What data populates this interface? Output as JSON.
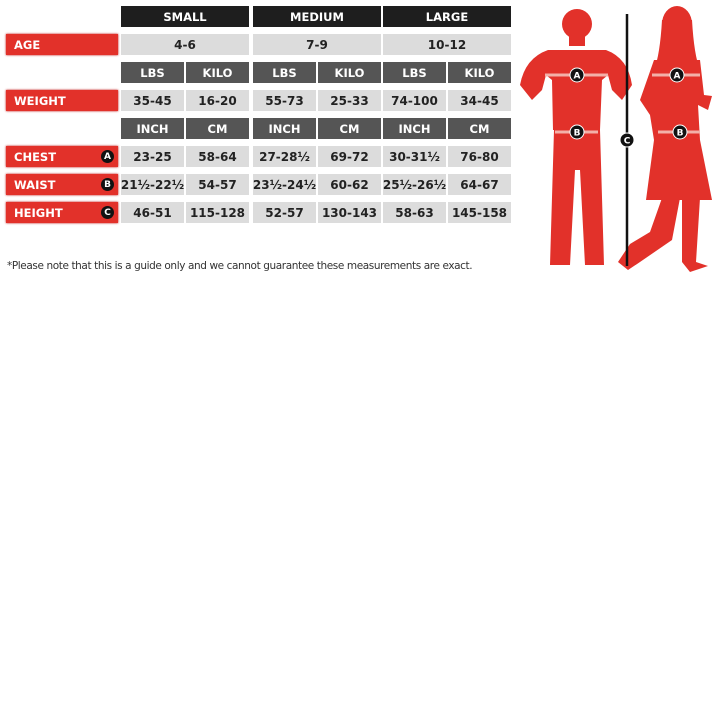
{
  "sizes": [
    "SMALL",
    "MEDIUM",
    "LARGE"
  ],
  "labels": {
    "age": "AGE",
    "weight": "WEIGHT",
    "chest": "CHEST",
    "waist": "WAIST",
    "height": "HEIGHT"
  },
  "markers": {
    "chest": "A",
    "waist": "B",
    "height": "C"
  },
  "units": {
    "weight": [
      "LBS",
      "KILO"
    ],
    "length": [
      "INCH",
      "CM"
    ]
  },
  "age": [
    "4-6",
    "7-9",
    "10-12"
  ],
  "weight": [
    [
      "35-45",
      "16-20"
    ],
    [
      "55-73",
      "25-33"
    ],
    [
      "74-100",
      "34-45"
    ]
  ],
  "chest": [
    [
      "23-25",
      "58-64"
    ],
    [
      "27-28½",
      "69-72"
    ],
    [
      "30-31½",
      "76-80"
    ]
  ],
  "waist": [
    [
      "21½-22½",
      "54-57"
    ],
    [
      "23½-24½",
      "60-62"
    ],
    [
      "25½-26½",
      "64-67"
    ]
  ],
  "height": [
    [
      "46-51",
      "115-128"
    ],
    [
      "52-57",
      "130-143"
    ],
    [
      "58-63",
      "145-158"
    ]
  ],
  "note": "*Please note that this is a guide only and we cannot guarantee these measurements are exact.",
  "colors": {
    "red": "#e2312a",
    "dark": "#1e1e1e",
    "sub": "#555555",
    "cell": "#dcdcdc"
  }
}
